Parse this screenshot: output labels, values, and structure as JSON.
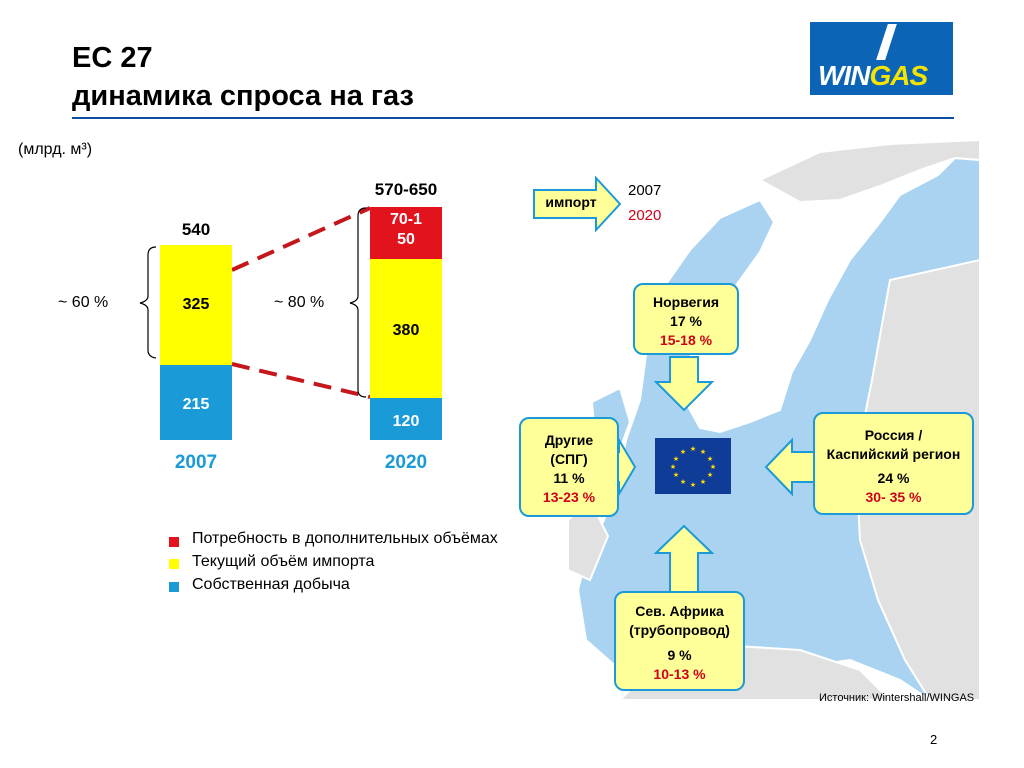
{
  "title": {
    "line1": "ЕС 27",
    "line2": "динамика спроса на газ"
  },
  "logo": {
    "win": "WIN",
    "gas": "GAS"
  },
  "unit_label": "(млрд. м³)",
  "colors": {
    "red": "#e3131e",
    "yellow": "#ffff00",
    "blue": "#1b9ad8",
    "accent": "#0b4ea2",
    "box_fill": "#ffff99"
  },
  "chart_data": {
    "type": "bar",
    "stacked": true,
    "categories": [
      "2007",
      "2020"
    ],
    "totals": [
      "540",
      "570-650"
    ],
    "series": [
      {
        "name": "Собственная добыча",
        "values": [
          "215",
          "120"
        ],
        "color": "#1b9ad8"
      },
      {
        "name": "Текущий объём импорта",
        "values": [
          "325",
          "380"
        ],
        "color": "#ffff00"
      },
      {
        "name": "Потребность в дополнительных объёмах",
        "values": [
          null,
          "70-150"
        ],
        "color": "#e3131e"
      }
    ],
    "import_share": [
      "~ 60 %",
      "~ 80 %"
    ],
    "legend": [
      "Потребность в дополнительных объёмах",
      "Текущий объём импорта",
      "Собственная добыча"
    ]
  },
  "map": {
    "import_label": "импорт",
    "legend_year_2007": "2007",
    "legend_year_2020": "2020",
    "sources": {
      "norway": {
        "name": "Норвегия",
        "share_2007": "17 %",
        "share_2020": "15-18 %"
      },
      "lng": {
        "name_line1": "Другие",
        "name_line2": "(СПГ)",
        "share_2007": "11 %",
        "share_2020": "13-23 %"
      },
      "russia": {
        "name_line1": "Россия /",
        "name_line2": "Каспийский регион",
        "share_2007": "24 %",
        "share_2020": "30- 35 %"
      },
      "north_africa": {
        "name_line1": "Сев. Африка",
        "name_line2": "(трубопровод)",
        "share_2007": "9 %",
        "share_2020": "10-13 %"
      }
    }
  },
  "source": "Источник: Wintershall/WINGAS",
  "page_number": "2"
}
